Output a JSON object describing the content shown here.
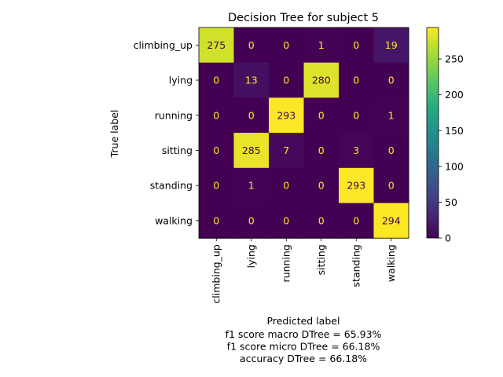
{
  "chart_data": {
    "type": "heatmap",
    "title": "Decision Tree for subject 5",
    "xlabel": "Predicted label",
    "ylabel": "True label",
    "x_categories": [
      "climbing_up",
      "lying",
      "running",
      "sitting",
      "standing",
      "walking"
    ],
    "y_categories": [
      "climbing_up",
      "lying",
      "running",
      "sitting",
      "standing",
      "walking"
    ],
    "matrix": [
      [
        275,
        0,
        0,
        1,
        0,
        19
      ],
      [
        0,
        13,
        0,
        280,
        0,
        0
      ],
      [
        0,
        0,
        293,
        0,
        0,
        1
      ],
      [
        0,
        285,
        7,
        0,
        3,
        0
      ],
      [
        0,
        1,
        0,
        0,
        293,
        0
      ],
      [
        0,
        0,
        0,
        0,
        0,
        294
      ]
    ],
    "colorbar": {
      "min": 0,
      "max": 294,
      "ticks": [
        0,
        50,
        100,
        150,
        200,
        250
      ],
      "colormap": "viridis"
    },
    "footer_lines": [
      "f1 score macro DTree = 65.93%",
      "f1 score micro DTree = 66.18%",
      "accuracy DTree = 66.18%"
    ],
    "grid": false
  }
}
